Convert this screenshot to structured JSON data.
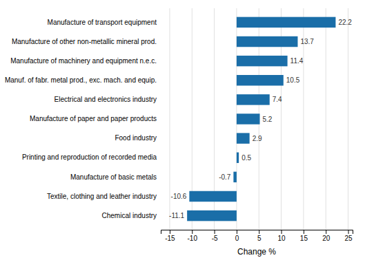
{
  "chart_data": {
    "type": "bar",
    "orientation": "horizontal",
    "categories": [
      "Chemical industry",
      "Textile, clothing and leather industry",
      "Manufacture of basic metals",
      "Printing and reproduction of recorded media",
      "Food industry",
      "Manufacture of paper and paper products",
      "Electrical and electronics industry",
      "Manuf. of fabr. metal prod., exc. mach. and equip.",
      "Manufacture of machinery and equipment n.e.c.",
      "Manufacture of other non-metallic mineral prod.",
      "Manufacture of transport equipment"
    ],
    "values": [
      -11.1,
      -10.6,
      -0.7,
      0.5,
      2.9,
      5.2,
      7.4,
      10.5,
      11.4,
      13.7,
      22.2
    ],
    "color": "#1a6ea8",
    "xlabel": "Change %",
    "xlim": [
      -17,
      26
    ],
    "xticks": [
      -15,
      -10,
      -5,
      0,
      5,
      10,
      15,
      20,
      25
    ],
    "grid": true,
    "data_labels": true
  }
}
